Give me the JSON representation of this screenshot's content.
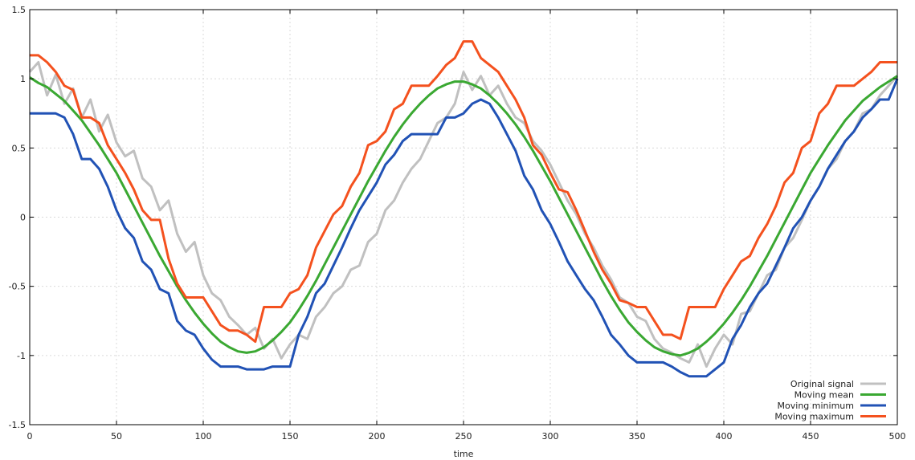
{
  "chart_data": {
    "type": "line",
    "title": "",
    "xlabel": "time",
    "ylabel": "",
    "xlim": [
      0,
      500
    ],
    "ylim": [
      -1.5,
      1.5
    ],
    "x_ticks": [
      0,
      50,
      100,
      150,
      200,
      250,
      300,
      350,
      400,
      450,
      500
    ],
    "y_ticks": [
      -1.5,
      -1,
      -0.5,
      0,
      0.5,
      1,
      1.5
    ],
    "x_tick_labels": [
      "0",
      "50",
      "100",
      "150",
      "200",
      "250",
      "300",
      "350",
      "400",
      "450",
      "500"
    ],
    "y_tick_labels": [
      "-1.5",
      "-1",
      "-0.5",
      "0",
      "0.5",
      "1",
      "1.5"
    ],
    "grid": true,
    "legend_position": "bottom-right",
    "series": [
      {
        "name": "Original signal",
        "color": "#c0c0c0",
        "x": [
          0,
          5,
          10,
          15,
          20,
          25,
          30,
          35,
          40,
          45,
          50,
          55,
          60,
          65,
          70,
          75,
          80,
          85,
          90,
          95,
          100,
          105,
          110,
          115,
          120,
          125,
          130,
          135,
          140,
          145,
          150,
          155,
          160,
          165,
          170,
          175,
          180,
          185,
          190,
          195,
          200,
          205,
          210,
          215,
          220,
          225,
          230,
          235,
          240,
          245,
          250,
          255,
          260,
          265,
          270,
          275,
          280,
          285,
          290,
          295,
          300,
          305,
          310,
          315,
          320,
          325,
          330,
          335,
          340,
          345,
          350,
          355,
          360,
          365,
          370,
          375,
          380,
          385,
          390,
          395,
          400,
          405,
          410,
          415,
          420,
          425,
          430,
          435,
          440,
          445,
          450,
          455,
          460,
          465,
          470,
          475,
          480,
          485,
          490,
          495,
          500
        ],
        "values": [
          1.05,
          1.12,
          0.88,
          1.03,
          0.82,
          0.93,
          0.72,
          0.85,
          0.62,
          0.74,
          0.54,
          0.44,
          0.48,
          0.28,
          0.22,
          0.05,
          0.12,
          -0.12,
          -0.25,
          -0.18,
          -0.42,
          -0.55,
          -0.6,
          -0.72,
          -0.78,
          -0.85,
          -0.8,
          -0.95,
          -0.88,
          -1.02,
          -0.92,
          -0.85,
          -0.88,
          -0.72,
          -0.65,
          -0.55,
          -0.5,
          -0.38,
          -0.35,
          -0.18,
          -0.12,
          0.05,
          0.12,
          0.25,
          0.35,
          0.42,
          0.55,
          0.68,
          0.72,
          0.82,
          1.05,
          0.92,
          1.02,
          0.88,
          0.95,
          0.82,
          0.72,
          0.68,
          0.55,
          0.48,
          0.38,
          0.25,
          0.12,
          0.02,
          -0.12,
          -0.22,
          -0.35,
          -0.45,
          -0.58,
          -0.62,
          -0.72,
          -0.75,
          -0.88,
          -0.95,
          -0.98,
          -1.02,
          -1.05,
          -0.92,
          -1.08,
          -0.95,
          -0.85,
          -0.92,
          -0.7,
          -0.68,
          -0.55,
          -0.42,
          -0.38,
          -0.22,
          -0.15,
          -0.02,
          0.12,
          0.22,
          0.35,
          0.42,
          0.55,
          0.62,
          0.75,
          0.78,
          0.88,
          0.95,
          1.02
        ]
      },
      {
        "name": "Moving mean",
        "color": "#3aa832",
        "x": [
          0,
          5,
          10,
          15,
          20,
          25,
          30,
          35,
          40,
          45,
          50,
          55,
          60,
          65,
          70,
          75,
          80,
          85,
          90,
          95,
          100,
          105,
          110,
          115,
          120,
          125,
          130,
          135,
          140,
          145,
          150,
          155,
          160,
          165,
          170,
          175,
          180,
          185,
          190,
          195,
          200,
          205,
          210,
          215,
          220,
          225,
          230,
          235,
          240,
          245,
          250,
          255,
          260,
          265,
          270,
          275,
          280,
          285,
          290,
          295,
          300,
          305,
          310,
          315,
          320,
          325,
          330,
          335,
          340,
          345,
          350,
          355,
          360,
          365,
          370,
          375,
          380,
          385,
          390,
          395,
          400,
          405,
          410,
          415,
          420,
          425,
          430,
          435,
          440,
          445,
          450,
          455,
          460,
          465,
          470,
          475,
          480,
          485,
          490,
          495,
          500
        ],
        "values": [
          1.01,
          0.97,
          0.94,
          0.89,
          0.84,
          0.77,
          0.7,
          0.61,
          0.52,
          0.42,
          0.32,
          0.2,
          0.08,
          -0.04,
          -0.16,
          -0.28,
          -0.39,
          -0.5,
          -0.6,
          -0.69,
          -0.77,
          -0.84,
          -0.9,
          -0.94,
          -0.97,
          -0.98,
          -0.97,
          -0.94,
          -0.89,
          -0.83,
          -0.76,
          -0.67,
          -0.57,
          -0.46,
          -0.34,
          -0.22,
          -0.1,
          0.02,
          0.14,
          0.26,
          0.37,
          0.48,
          0.58,
          0.67,
          0.75,
          0.82,
          0.88,
          0.93,
          0.96,
          0.98,
          0.98,
          0.96,
          0.93,
          0.88,
          0.82,
          0.75,
          0.67,
          0.58,
          0.48,
          0.37,
          0.26,
          0.14,
          0.02,
          -0.1,
          -0.22,
          -0.34,
          -0.46,
          -0.57,
          -0.67,
          -0.76,
          -0.83,
          -0.89,
          -0.94,
          -0.97,
          -0.99,
          -1.0,
          -0.98,
          -0.95,
          -0.9,
          -0.84,
          -0.77,
          -0.69,
          -0.6,
          -0.5,
          -0.39,
          -0.28,
          -0.16,
          -0.04,
          0.08,
          0.2,
          0.32,
          0.42,
          0.52,
          0.61,
          0.7,
          0.77,
          0.84,
          0.89,
          0.94,
          0.98,
          1.02
        ]
      },
      {
        "name": "Moving minimum",
        "color": "#2152b5",
        "x": [
          0,
          5,
          10,
          15,
          20,
          25,
          30,
          35,
          40,
          45,
          50,
          55,
          60,
          65,
          70,
          75,
          80,
          85,
          90,
          95,
          100,
          105,
          110,
          115,
          120,
          125,
          130,
          135,
          140,
          145,
          150,
          155,
          160,
          165,
          170,
          175,
          180,
          185,
          190,
          195,
          200,
          205,
          210,
          215,
          220,
          225,
          230,
          235,
          240,
          245,
          250,
          255,
          260,
          265,
          270,
          275,
          280,
          285,
          290,
          295,
          300,
          305,
          310,
          315,
          320,
          325,
          330,
          335,
          340,
          345,
          350,
          355,
          360,
          365,
          370,
          375,
          380,
          385,
          390,
          395,
          400,
          405,
          410,
          415,
          420,
          425,
          430,
          435,
          440,
          445,
          450,
          455,
          460,
          465,
          470,
          475,
          480,
          485,
          490,
          495,
          500
        ],
        "values": [
          0.75,
          0.75,
          0.75,
          0.75,
          0.72,
          0.6,
          0.42,
          0.42,
          0.35,
          0.22,
          0.05,
          -0.08,
          -0.15,
          -0.32,
          -0.38,
          -0.52,
          -0.55,
          -0.75,
          -0.82,
          -0.85,
          -0.95,
          -1.03,
          -1.08,
          -1.08,
          -1.08,
          -1.1,
          -1.1,
          -1.1,
          -1.08,
          -1.08,
          -1.08,
          -0.85,
          -0.72,
          -0.55,
          -0.48,
          -0.35,
          -0.22,
          -0.08,
          0.05,
          0.15,
          0.25,
          0.38,
          0.45,
          0.55,
          0.6,
          0.6,
          0.6,
          0.6,
          0.72,
          0.72,
          0.75,
          0.82,
          0.85,
          0.82,
          0.72,
          0.6,
          0.48,
          0.3,
          0.2,
          0.05,
          -0.05,
          -0.18,
          -0.32,
          -0.42,
          -0.52,
          -0.6,
          -0.72,
          -0.85,
          -0.92,
          -1.0,
          -1.05,
          -1.05,
          -1.05,
          -1.05,
          -1.08,
          -1.12,
          -1.15,
          -1.15,
          -1.15,
          -1.1,
          -1.05,
          -0.88,
          -0.78,
          -0.65,
          -0.55,
          -0.48,
          -0.35,
          -0.22,
          -0.08,
          0.0,
          0.12,
          0.22,
          0.35,
          0.45,
          0.55,
          0.62,
          0.72,
          0.78,
          0.85,
          0.85,
          1.0
        ]
      },
      {
        "name": "Moving maximum",
        "color": "#f4511e",
        "x": [
          0,
          5,
          10,
          15,
          20,
          25,
          30,
          35,
          40,
          45,
          50,
          55,
          60,
          65,
          70,
          75,
          80,
          85,
          90,
          95,
          100,
          105,
          110,
          115,
          120,
          125,
          130,
          135,
          140,
          145,
          150,
          155,
          160,
          165,
          170,
          175,
          180,
          185,
          190,
          195,
          200,
          205,
          210,
          215,
          220,
          225,
          230,
          235,
          240,
          245,
          250,
          255,
          260,
          265,
          270,
          275,
          280,
          285,
          290,
          295,
          300,
          305,
          310,
          315,
          320,
          325,
          330,
          335,
          340,
          345,
          350,
          355,
          360,
          365,
          370,
          375,
          380,
          385,
          390,
          395,
          400,
          405,
          410,
          415,
          420,
          425,
          430,
          435,
          440,
          445,
          450,
          455,
          460,
          465,
          470,
          475,
          480,
          485,
          490,
          495,
          500
        ],
        "values": [
          1.17,
          1.17,
          1.12,
          1.05,
          0.95,
          0.92,
          0.72,
          0.72,
          0.68,
          0.52,
          0.42,
          0.32,
          0.2,
          0.05,
          -0.02,
          -0.02,
          -0.3,
          -0.48,
          -0.58,
          -0.58,
          -0.58,
          -0.68,
          -0.78,
          -0.82,
          -0.82,
          -0.85,
          -0.9,
          -0.65,
          -0.65,
          -0.65,
          -0.55,
          -0.52,
          -0.42,
          -0.22,
          -0.1,
          0.02,
          0.08,
          0.22,
          0.32,
          0.52,
          0.55,
          0.62,
          0.78,
          0.82,
          0.95,
          0.95,
          0.95,
          1.02,
          1.1,
          1.15,
          1.27,
          1.27,
          1.15,
          1.1,
          1.05,
          0.95,
          0.85,
          0.72,
          0.52,
          0.45,
          0.32,
          0.2,
          0.18,
          0.05,
          -0.1,
          -0.25,
          -0.38,
          -0.48,
          -0.6,
          -0.62,
          -0.65,
          -0.65,
          -0.75,
          -0.85,
          -0.85,
          -0.88,
          -0.65,
          -0.65,
          -0.65,
          -0.65,
          -0.52,
          -0.42,
          -0.32,
          -0.28,
          -0.15,
          -0.05,
          0.08,
          0.25,
          0.32,
          0.5,
          0.55,
          0.75,
          0.82,
          0.95,
          0.95,
          0.95,
          1.0,
          1.05,
          1.12,
          1.12,
          1.12
        ]
      }
    ]
  }
}
